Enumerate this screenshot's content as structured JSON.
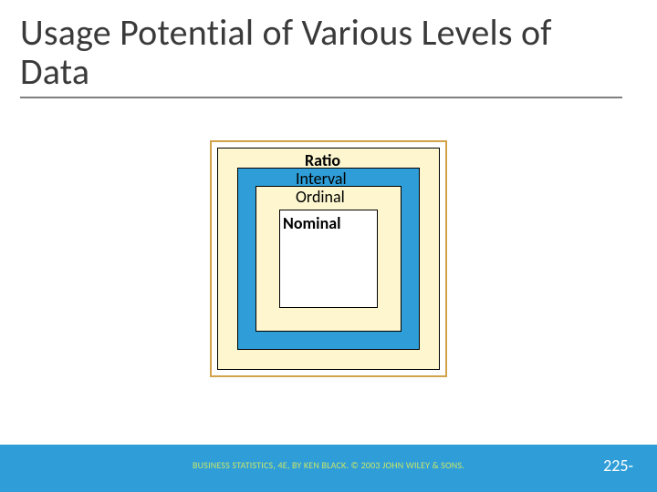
{
  "title": "Usage Potential of Various Levels of Data",
  "diagram": {
    "type": "nested-squares",
    "levels": [
      {
        "key": "ratio",
        "label": "Ratio",
        "fill": "#fdf6cf",
        "border": "#000000"
      },
      {
        "key": "interval",
        "label": "Interval",
        "fill": "#2f9ed8",
        "border": "#000000"
      },
      {
        "key": "ordinal",
        "label": "Ordinal",
        "fill": "#fdf6cf",
        "border": "#000000"
      },
      {
        "key": "nominal",
        "label": "Nominal",
        "fill": "#ffffff",
        "border": "#000000"
      }
    ],
    "outer_border_color": "#d2a24a",
    "label_fontsize": 18,
    "label_color": "#000000"
  },
  "footer": {
    "bar_color": "#2f9ed8",
    "copyright": "BUSINESS STATISTICS, 4E, BY KEN BLACK. © 2003 JOHN WILEY & SONS.",
    "copyright_color": "#c9e66a",
    "page_number": "225-",
    "page_number_color": "#ffffff"
  },
  "colors": {
    "title_text": "#3a3a3a",
    "title_rule": "#808080",
    "background": "#ffffff"
  }
}
